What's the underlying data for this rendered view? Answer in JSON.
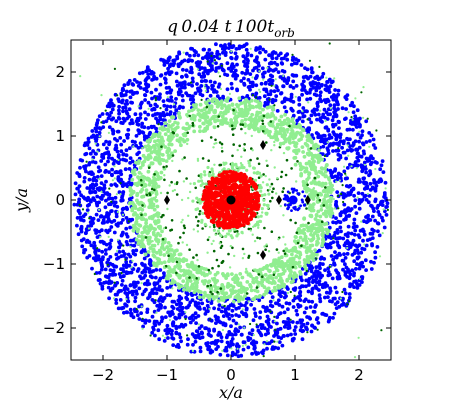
{
  "chart_data": {
    "type": "scatter",
    "title": "q = 0.04  t = 100t_orb",
    "title_parts": {
      "main": "q 0.04  t 100t",
      "sub": "orb"
    },
    "xlabel": "x/a",
    "ylabel": "y/a",
    "xlim": [
      -2.5,
      2.5
    ],
    "ylim": [
      -2.5,
      2.5
    ],
    "x_ticks": [
      -2,
      -1,
      0,
      1,
      2
    ],
    "y_ticks": [
      -2,
      -1,
      0,
      1,
      2
    ],
    "x_tick_labels": [
      "−2",
      "−1",
      "0",
      "1",
      "2"
    ],
    "y_tick_labels": [
      "−2",
      "−1",
      "0",
      "1",
      "2"
    ],
    "grid": false,
    "legend": "none",
    "colors": {
      "outer_ring": "#0000ff",
      "inner_ring": "#90ee90",
      "scattered": "#006400",
      "central_disk": "#ff0000",
      "planet_disk": "#0000ff",
      "star": "#000000",
      "planet": "#0000ff",
      "lagrange": "#000000"
    },
    "series": [
      {
        "component": "outer_ring",
        "radius_range": [
          1.55,
          2.45
        ],
        "marker": "dot"
      },
      {
        "component": "inner_ring",
        "radius_range": [
          1.15,
          1.6
        ],
        "marker": "dot"
      },
      {
        "component": "scattered",
        "radius_range": [
          0.2,
          2.5
        ],
        "marker": "dot"
      },
      {
        "component": "central_disk",
        "center": [
          0,
          0
        ],
        "radius_range": [
          0,
          0.45
        ],
        "marker": "dot"
      },
      {
        "component": "planet_disk",
        "center": [
          1.0,
          0
        ],
        "radius_range": [
          0.1,
          0.18
        ],
        "marker": "dot"
      }
    ],
    "points": {
      "star": [
        {
          "x": 0,
          "y": 0
        }
      ],
      "planet": [
        {
          "x": 0.97,
          "y": 0
        }
      ],
      "lagrange": [
        {
          "x": -1.0,
          "y": 0
        },
        {
          "x": 0.75,
          "y": 0
        },
        {
          "x": 1.2,
          "y": 0
        },
        {
          "x": 0.5,
          "y": 0.86
        },
        {
          "x": 0.5,
          "y": -0.86
        }
      ]
    }
  }
}
